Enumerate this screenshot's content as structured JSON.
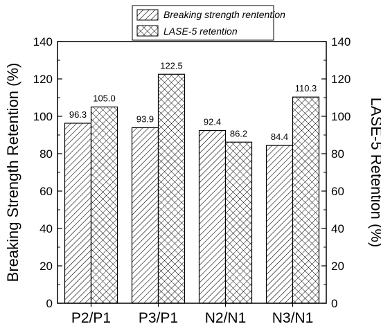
{
  "chart_data": {
    "type": "bar",
    "categories": [
      "P2/P1",
      "P3/P1",
      "N2/N1",
      "N3/N1"
    ],
    "series": [
      {
        "name": "Breaking strength rentention",
        "values": [
          96.3,
          93.9,
          92.4,
          84.4
        ],
        "labels": [
          "96.3",
          "93.9",
          "92.4",
          "84.4"
        ],
        "pattern": "diagonal-hatch"
      },
      {
        "name": "LASE-5 retention",
        "values": [
          105.0,
          122.5,
          86.2,
          110.3
        ],
        "labels": [
          "105.0",
          "122.5",
          "86.2",
          "110.3"
        ],
        "pattern": "crosshatch"
      }
    ],
    "ylabel": "Breaking Strength Retention (%)",
    "ylabel_right": "LASE-5 Retention (%)",
    "ylim": [
      0,
      140
    ],
    "yticks": [
      0,
      20,
      40,
      60,
      80,
      100,
      120,
      140
    ],
    "ytick_labels": [
      "0",
      "20",
      "40",
      "60",
      "80",
      "100",
      "120",
      "140"
    ],
    "legend_position": "top-center",
    "grid": false,
    "colors": {
      "stroke": "#000000",
      "fill": "#ffffff"
    }
  }
}
